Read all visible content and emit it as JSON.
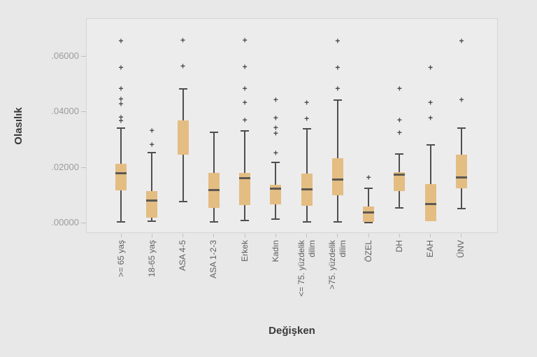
{
  "chart_data": {
    "type": "boxplot",
    "title": "",
    "xlabel": "Değişken",
    "ylabel": "Olasılık",
    "ylim": [
      0,
      0.0737
    ],
    "grid": false,
    "yticks": [
      {
        "value": 0.06,
        "label": ".06000"
      },
      {
        "value": 0.04,
        "label": ".04000"
      },
      {
        "value": 0.02,
        "label": ".02000"
      },
      {
        "value": 0.0,
        "label": ".00000"
      }
    ],
    "series": [
      {
        "label": ">= 65 yaş",
        "whisker_low": 0.0003,
        "q1": 0.0116,
        "median": 0.0179,
        "q3": 0.0212,
        "whisker_high": 0.034,
        "outliers": [
          0.0366,
          0.0378,
          0.0426,
          0.0444,
          0.0482,
          0.0557,
          0.0653
        ]
      },
      {
        "label": "18-65 yaş",
        "whisker_low": 0.0005,
        "q1": 0.0018,
        "median": 0.0081,
        "q3": 0.0113,
        "whisker_high": 0.0252,
        "outliers": [
          0.028,
          0.033
        ]
      },
      {
        "label": "ASA 4-5",
        "whisker_low": 0.0076,
        "q1": 0.0245,
        "median": null,
        "q3": 0.0368,
        "whisker_high": 0.0482,
        "outliers": [
          0.0562,
          0.0656
        ]
      },
      {
        "label": "ASA 1-2-3",
        "whisker_low": 0.0003,
        "q1": 0.0053,
        "median": 0.0119,
        "q3": 0.0179,
        "whisker_high": 0.0325,
        "outliers": []
      },
      {
        "label": "Erkek",
        "whisker_low": 0.0008,
        "q1": 0.0063,
        "median": 0.0161,
        "q3": 0.0179,
        "whisker_high": 0.033,
        "outliers": [
          0.0368,
          0.0431,
          0.0482,
          0.056,
          0.0656
        ]
      },
      {
        "label": "Kadın",
        "whisker_low": 0.0013,
        "q1": 0.0066,
        "median": 0.0124,
        "q3": 0.0136,
        "whisker_high": 0.0217,
        "outliers": [
          0.025,
          0.032,
          0.034,
          0.0376,
          0.0441
        ]
      },
      {
        "label": "<= 75. yüzdelik\ndilim",
        "whisker_low": 0.0003,
        "q1": 0.0061,
        "median": 0.0121,
        "q3": 0.0177,
        "whisker_high": 0.0338,
        "outliers": [
          0.0373,
          0.0431
        ]
      },
      {
        "label": ">75. yüzdelik\ndilim",
        "whisker_low": 0.0003,
        "q1": 0.0098,
        "median": 0.0156,
        "q3": 0.0232,
        "whisker_high": 0.0441,
        "outliers": [
          0.0482,
          0.0557,
          0.0653
        ]
      },
      {
        "label": "ÖZEL",
        "whisker_low": 0.0,
        "q1": 0.0003,
        "median": 0.0038,
        "q3": 0.0058,
        "whisker_high": 0.0124,
        "outliers": [
          0.0161
        ]
      },
      {
        "label": "DH",
        "whisker_low": 0.0053,
        "q1": 0.0113,
        "median": 0.0174,
        "q3": 0.0181,
        "whisker_high": 0.0247,
        "outliers": [
          0.0323,
          0.0368,
          0.0482
        ]
      },
      {
        "label": "EAH",
        "whisker_low": 0.0005,
        "q1": 0.0005,
        "median": 0.0068,
        "q3": 0.0139,
        "whisker_high": 0.028,
        "outliers": [
          0.0376,
          0.0431,
          0.0557
        ]
      },
      {
        "label": "ÜNV",
        "whisker_low": 0.005,
        "q1": 0.0124,
        "median": 0.0164,
        "q3": 0.0244,
        "whisker_high": 0.034,
        "outliers": [
          0.0441,
          0.0653
        ]
      }
    ],
    "colors": {
      "box_fill": "#e4bd83",
      "whisker": "#4f4f4f",
      "median": "#5e5952",
      "outlier": "#4a4a4a",
      "plot_background": "#ececec",
      "page_background": "#e8e8e8",
      "plot_border": "#d4d4d4"
    },
    "outlier_marker": "+",
    "legend": null
  }
}
